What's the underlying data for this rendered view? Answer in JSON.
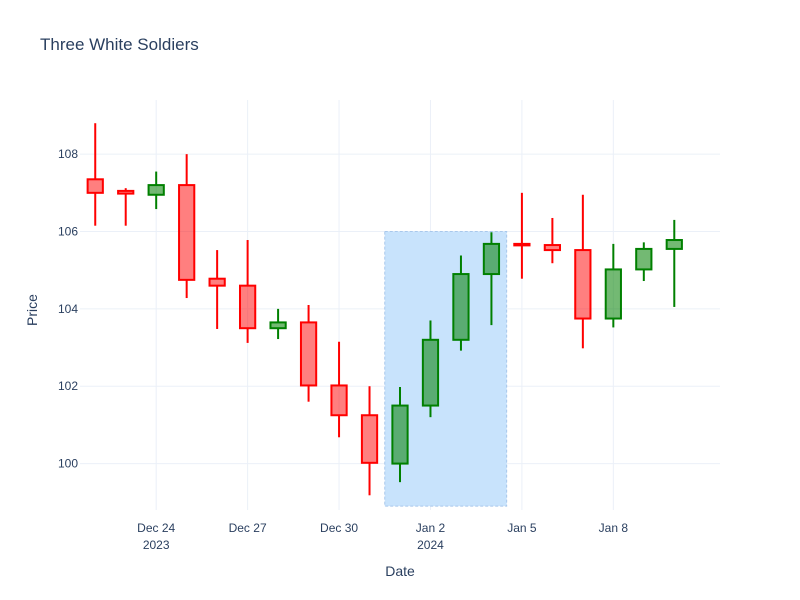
{
  "chart_data": {
    "type": "candlestick",
    "title": "Three White Soldiers",
    "xlabel": "Date",
    "ylabel": "Price",
    "x_ticks": [
      {
        "date": "2023-12-24",
        "label": "Dec 24",
        "sublabel": "2023"
      },
      {
        "date": "2023-12-27",
        "label": "Dec 27",
        "sublabel": ""
      },
      {
        "date": "2023-12-30",
        "label": "Dec 30",
        "sublabel": ""
      },
      {
        "date": "2024-01-02",
        "label": "Jan 2",
        "sublabel": "2024"
      },
      {
        "date": "2024-01-05",
        "label": "Jan 5",
        "sublabel": ""
      },
      {
        "date": "2024-01-08",
        "label": "Jan 8",
        "sublabel": ""
      }
    ],
    "y_ticks": [
      100,
      102,
      104,
      106,
      108
    ],
    "xlim": [
      "2023-12-21T12:00",
      "2024-01-11T12:00"
    ],
    "ylim": [
      98.8,
      109.4
    ],
    "grid": true,
    "increasing_color": "#008000",
    "decreasing_color": "#ff0000",
    "candles": [
      {
        "date": "2023-12-22",
        "open": 107.35,
        "high": 108.8,
        "low": 106.15,
        "close": 107.0
      },
      {
        "date": "2023-12-23",
        "open": 107.05,
        "high": 107.12,
        "low": 106.15,
        "close": 106.98
      },
      {
        "date": "2023-12-24",
        "open": 106.95,
        "high": 107.55,
        "low": 106.58,
        "close": 107.2
      },
      {
        "date": "2023-12-25",
        "open": 107.2,
        "high": 108.0,
        "low": 104.28,
        "close": 104.75
      },
      {
        "date": "2023-12-26",
        "open": 104.78,
        "high": 105.52,
        "low": 103.48,
        "close": 104.6
      },
      {
        "date": "2023-12-27",
        "open": 104.6,
        "high": 105.78,
        "low": 103.12,
        "close": 103.5
      },
      {
        "date": "2023-12-28",
        "open": 103.5,
        "high": 104.0,
        "low": 103.22,
        "close": 103.65
      },
      {
        "date": "2023-12-29",
        "open": 103.65,
        "high": 104.1,
        "low": 101.6,
        "close": 102.02
      },
      {
        "date": "2023-12-30",
        "open": 102.02,
        "high": 103.15,
        "low": 100.68,
        "close": 101.25
      },
      {
        "date": "2023-12-31",
        "open": 101.25,
        "high": 102.0,
        "low": 99.18,
        "close": 100.02
      },
      {
        "date": "2024-01-01",
        "open": 100.0,
        "high": 101.98,
        "low": 99.52,
        "close": 101.5
      },
      {
        "date": "2024-01-02",
        "open": 101.5,
        "high": 103.7,
        "low": 101.2,
        "close": 103.2
      },
      {
        "date": "2024-01-03",
        "open": 103.2,
        "high": 105.38,
        "low": 102.92,
        "close": 104.9
      },
      {
        "date": "2024-01-04",
        "open": 104.9,
        "high": 105.98,
        "low": 103.58,
        "close": 105.68
      },
      {
        "date": "2024-01-05",
        "open": 105.68,
        "high": 107.0,
        "low": 104.78,
        "close": 105.65
      },
      {
        "date": "2024-01-06",
        "open": 105.65,
        "high": 106.35,
        "low": 105.18,
        "close": 105.52
      },
      {
        "date": "2024-01-07",
        "open": 105.52,
        "high": 106.95,
        "low": 102.98,
        "close": 103.75
      },
      {
        "date": "2024-01-08",
        "open": 103.75,
        "high": 105.68,
        "low": 103.52,
        "close": 105.02
      },
      {
        "date": "2024-01-09",
        "open": 105.02,
        "high": 105.72,
        "low": 104.72,
        "close": 105.55
      },
      {
        "date": "2024-01-10",
        "open": 105.55,
        "high": 106.3,
        "low": 104.05,
        "close": 105.78
      }
    ],
    "highlight": {
      "x0": "2023-12-31T12:00",
      "x1": "2024-01-04T12:00",
      "y0": 98.9,
      "y1": 106.0,
      "color": "#c8e3fc"
    }
  }
}
